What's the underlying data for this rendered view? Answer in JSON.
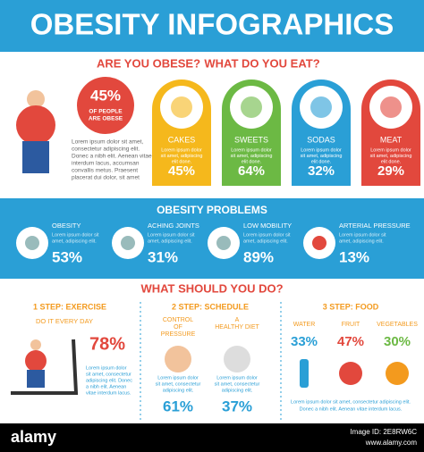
{
  "header": {
    "title": "OBESITY INFOGRAPHICS"
  },
  "intro": {
    "questions": [
      "ARE YOU OBESE?",
      "WHAT DO YOU EAT?"
    ],
    "stat": "45%",
    "stat_caption": [
      "OF PEOPLE",
      "ARE OBESE"
    ],
    "text": [
      "Lorem ipsum dolor sit amet,",
      "consectetur adipiscing elit.",
      "Donec a nibh elit. Aenean vitae",
      "interdum lacus, accumsan",
      "convallis metus. Praesent",
      "placerat dui dolor, sit amet"
    ]
  },
  "foods": [
    {
      "label": "CAKES",
      "text": [
        "Lorem ipsum dolor",
        "sit amet, adipiscing",
        "elit done."
      ],
      "percent": "45%",
      "color": "#f5b81c"
    },
    {
      "label": "SWEETS",
      "text": [
        "Lorem ipsum dolor",
        "sit amet, adipiscing",
        "elit done."
      ],
      "percent": "64%",
      "color": "#6cb944"
    },
    {
      "label": "SODAS",
      "text": [
        "Lorem ipsum dolor",
        "sit amet, adipiscing",
        "elit done."
      ],
      "percent": "32%",
      "color": "#2a9fd6"
    },
    {
      "label": "MEAT",
      "text": [
        "Lorem ipsum dolor",
        "sit amet, adipiscing",
        "elit done."
      ],
      "percent": "29%",
      "color": "#e2483d"
    }
  ],
  "problems": {
    "title": "OBESITY PROBLEMS",
    "items": [
      {
        "label": "OBESITY",
        "text": [
          "Lorem ipsum dolor sit",
          "amet, adipiscing elit."
        ],
        "percent": "53%"
      },
      {
        "label": "ACHING JOINTS",
        "text": [
          "Lorem ipsum dolor sit",
          "amet, adipiscing elit."
        ],
        "percent": "31%"
      },
      {
        "label": "LOW MOBILITY",
        "text": [
          "Lorem ipsum dolor sit",
          "amet, adipiscing elit."
        ],
        "percent": "89%"
      },
      {
        "label": "ARTERIAL PRESSURE",
        "text": [
          "Lorem ipsum dolor sit",
          "amet, adipiscing elit."
        ],
        "percent": "13%"
      }
    ]
  },
  "actions": {
    "title": "WHAT SHOULD YOU DO?",
    "exercise": {
      "title": "1 STEP: EXERCISE",
      "subtitle": "DO IT EVERY DAY",
      "percent": "78%",
      "text": [
        "Lorem ipsum dolor",
        "sit amet, consectetur",
        "adipiscing elit. Donec",
        "a nibh elit. Aenean",
        "vitae interdum lacus."
      ]
    },
    "schedule": {
      "title": "2 STEP: SCHEDULE",
      "items": [
        {
          "label": [
            "CONTROL",
            "OF",
            "PRESSURE"
          ],
          "text": [
            "Lorem ipsum dolor",
            "sit amet, consectetur",
            "adipiscing elit."
          ],
          "percent": "61%"
        },
        {
          "label": [
            "A",
            "HEALTHY DIET"
          ],
          "text": [
            "Lorem ipsum dolor",
            "sit amet, consectetur",
            "adipiscing elit."
          ],
          "percent": "37%"
        }
      ]
    },
    "food": {
      "title": "3 STEP: FOOD",
      "items": [
        {
          "label": "WATER",
          "percent": "33%"
        },
        {
          "label": "FRUIT",
          "percent": "47%"
        },
        {
          "label": "VEGETABLES",
          "percent": "30%"
        }
      ],
      "text": [
        "Lorem ipsum dolor sit amet, consectetur adipiscing elit.",
        "Donec a nibh elit. Aenean vitae interdum lacus."
      ]
    }
  },
  "footer": {
    "brand": "alamy",
    "image_id": "Image ID: 2E8RW6C",
    "site": "www.alamy.com"
  }
}
